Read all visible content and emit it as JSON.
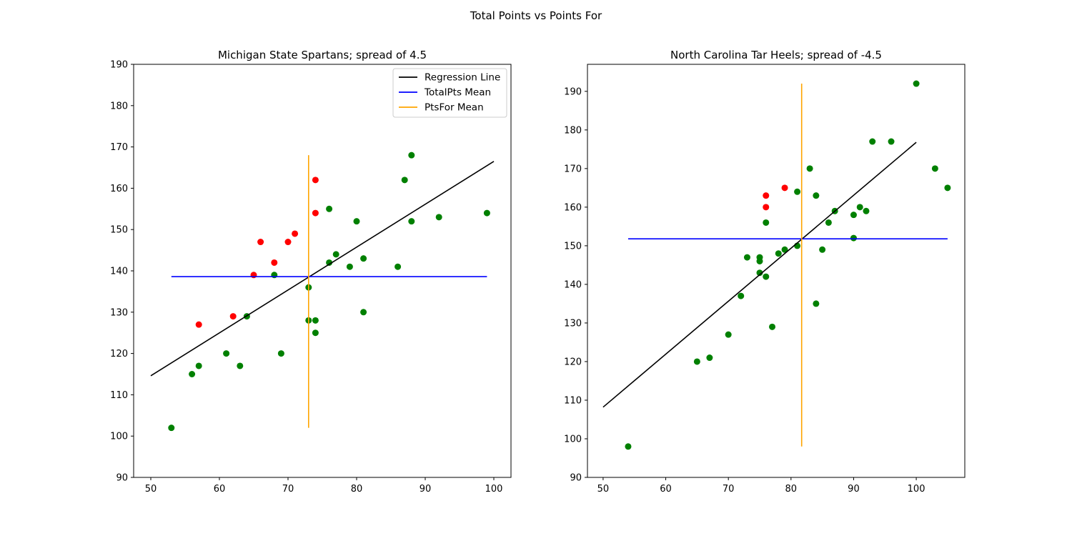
{
  "figure": {
    "suptitle": "Total Points vs Points For"
  },
  "colors": {
    "above": "#ff0000",
    "below": "#008000",
    "regression": "#000000",
    "totalpts_mean": "#0000ff",
    "ptsfor_mean": "#ffa500"
  },
  "chart_data": [
    {
      "type": "scatter",
      "title": "Michigan State Spartans; spread of 4.5",
      "xlabel": "",
      "ylabel": "",
      "xlim": [
        47.5,
        102.5
      ],
      "ylim": [
        90,
        190
      ],
      "xticks": [
        50,
        60,
        70,
        80,
        90,
        100
      ],
      "yticks": [
        90,
        100,
        110,
        120,
        130,
        140,
        150,
        160,
        170,
        180,
        190
      ],
      "legend": {
        "placement": "top-right",
        "entries": [
          "Regression Line",
          "TotalPts Mean",
          "PtsFor Mean"
        ]
      },
      "regression_line": {
        "x": [
          50,
          100
        ],
        "y": [
          114.6,
          166.5
        ]
      },
      "totalpts_mean": {
        "y": 138.6,
        "x_range": [
          53,
          99
        ]
      },
      "ptsfor_mean": {
        "x": 73,
        "y_range": [
          102,
          168
        ]
      },
      "points_red": [
        [
          57,
          127
        ],
        [
          62,
          129
        ],
        [
          65,
          139
        ],
        [
          66,
          147
        ],
        [
          68,
          142
        ],
        [
          70,
          147
        ],
        [
          71,
          149
        ],
        [
          74,
          154
        ],
        [
          74,
          162
        ]
      ],
      "points_green": [
        [
          53,
          102
        ],
        [
          56,
          115
        ],
        [
          57,
          117
        ],
        [
          61,
          120
        ],
        [
          63,
          117
        ],
        [
          64,
          129
        ],
        [
          68,
          139
        ],
        [
          69,
          120
        ],
        [
          73,
          128
        ],
        [
          73,
          136
        ],
        [
          74,
          128
        ],
        [
          74,
          125
        ],
        [
          76,
          142
        ],
        [
          76,
          155
        ],
        [
          77,
          144
        ],
        [
          79,
          141
        ],
        [
          80,
          152
        ],
        [
          81,
          143
        ],
        [
          81,
          130
        ],
        [
          86,
          141
        ],
        [
          87,
          162
        ],
        [
          88,
          152
        ],
        [
          88,
          168
        ],
        [
          92,
          153
        ],
        [
          99,
          154
        ]
      ]
    },
    {
      "type": "scatter",
      "title": "North Carolina Tar Heels; spread of -4.5",
      "xlabel": "",
      "ylabel": "",
      "xlim": [
        47.5,
        107.75
      ],
      "ylim": [
        90,
        197
      ],
      "xticks": [
        50,
        60,
        70,
        80,
        90,
        100
      ],
      "yticks": [
        90,
        100,
        110,
        120,
        130,
        140,
        150,
        160,
        170,
        180,
        190
      ],
      "regression_line": {
        "x": [
          50,
          100
        ],
        "y": [
          108.2,
          176.8
        ]
      },
      "totalpts_mean": {
        "y": 151.8,
        "x_range": [
          54,
          105
        ]
      },
      "ptsfor_mean": {
        "x": 81.7,
        "y_range": [
          98,
          192
        ]
      },
      "points_red": [
        [
          76,
          163
        ],
        [
          76,
          160
        ],
        [
          79,
          165
        ]
      ],
      "points_green": [
        [
          54,
          98
        ],
        [
          65,
          120
        ],
        [
          67,
          121
        ],
        [
          70,
          127
        ],
        [
          72,
          137
        ],
        [
          73,
          147
        ],
        [
          75,
          147
        ],
        [
          75,
          146
        ],
        [
          75,
          143
        ],
        [
          76,
          142
        ],
        [
          76,
          156
        ],
        [
          77,
          129
        ],
        [
          78,
          148
        ],
        [
          79,
          149
        ],
        [
          81,
          150
        ],
        [
          81,
          164
        ],
        [
          83,
          170
        ],
        [
          84,
          163
        ],
        [
          84,
          135
        ],
        [
          85,
          149
        ],
        [
          86,
          156
        ],
        [
          87,
          159
        ],
        [
          90,
          152
        ],
        [
          90,
          158
        ],
        [
          91,
          160
        ],
        [
          92,
          159
        ],
        [
          93,
          177
        ],
        [
          96,
          177
        ],
        [
          100,
          192
        ],
        [
          103,
          170
        ],
        [
          105,
          165
        ]
      ]
    }
  ]
}
